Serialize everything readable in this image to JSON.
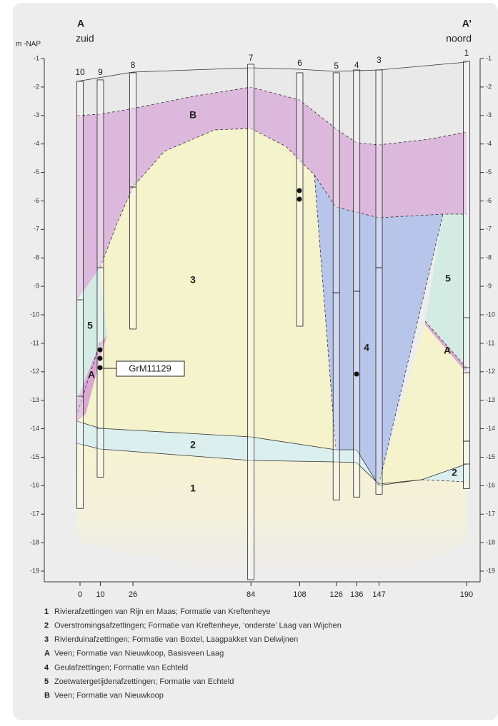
{
  "header": {
    "left_label": "A",
    "left_direction": "zuid",
    "right_label": "A’",
    "right_direction": "noord",
    "axis_unit": "m -NAP"
  },
  "depth_ticks": [
    -1,
    -2,
    -3,
    -4,
    -5,
    -6,
    -7,
    -8,
    -9,
    -10,
    -11,
    -12,
    -13,
    -14,
    -15,
    -16,
    -17,
    -18,
    -19
  ],
  "boreholes": [
    {
      "id": "10",
      "distance": 0
    },
    {
      "id": "9",
      "distance": 10
    },
    {
      "id": "8",
      "distance": 26
    },
    {
      "id": "7",
      "distance": 84
    },
    {
      "id": "6",
      "distance": 108
    },
    {
      "id": "5",
      "distance": 126
    },
    {
      "id": "4",
      "distance": 136
    },
    {
      "id": "3",
      "distance": 147
    },
    {
      "id": "1",
      "distance": 190
    }
  ],
  "layer_labels": [
    "B",
    "3",
    "5",
    "A",
    "4",
    "2",
    "1",
    "5",
    "A",
    "2"
  ],
  "sample_label": "GrM11129",
  "legend": [
    {
      "key": "1",
      "text": "Rivierafzettingen van Rijn en Maas; Formatie van Kreftenheye"
    },
    {
      "key": "2",
      "text": "Overstromingsafzettingen; Formatie van Kreftenheye, ‘onderste’ Laag van Wijchen"
    },
    {
      "key": "3",
      "text": "Rivierduinafzettingen; Formatie van Boxtel, Laagpakket van Delwijnen"
    },
    {
      "key": "A",
      "text": "Veen; Formatie van Nieuwkoop, Basisveen Laag"
    },
    {
      "key": "4",
      "text": "Geulafzettingen; Formatie van Echteld"
    },
    {
      "key": "5",
      "text": "Zoetwatergetijdenafzettingen; Formatie van Echteld"
    },
    {
      "key": "B",
      "text": "Veen; Formatie van Nieuwkoop"
    }
  ]
}
